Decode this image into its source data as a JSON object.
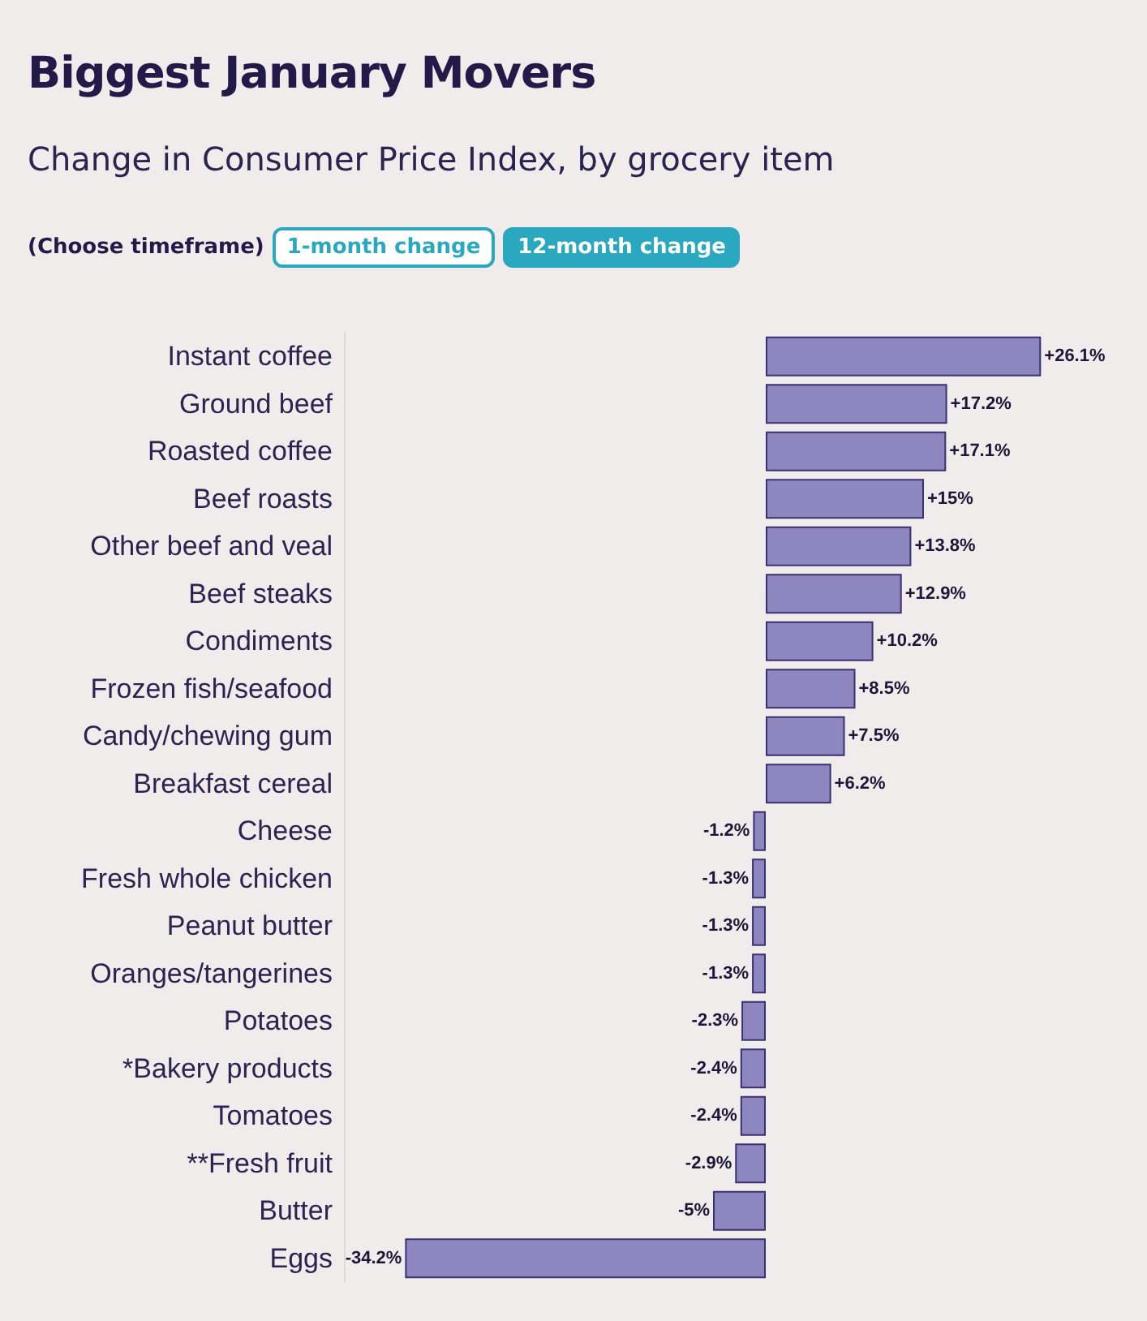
{
  "chart_data": {
    "type": "bar",
    "orientation": "horizontal",
    "title": "Biggest January Movers",
    "subtitle": "Change in Consumer Price Index, by grocery item",
    "annotations": [
      "(Choose timeframe)",
      "1-month change",
      "12-month change"
    ],
    "categories": [
      "Instant coffee",
      "Ground beef",
      "Roasted coffee",
      "Beef roasts",
      "Other beef and veal",
      "Beef steaks",
      "Condiments",
      "Frozen fish/seafood",
      "Candy/chewing gum",
      "Breakfast cereal",
      "Cheese",
      "Fresh whole chicken",
      "Peanut butter",
      "Oranges/tangerines",
      "Potatoes",
      "*Bakery products",
      "Tomatoes",
      "**Fresh fruit",
      "Butter",
      "Eggs"
    ],
    "values": [
      26.1,
      17.2,
      17.1,
      15,
      13.8,
      12.9,
      10.2,
      8.5,
      7.5,
      6.2,
      -1.2,
      -1.3,
      -1.3,
      -1.3,
      -2.3,
      -2.4,
      -2.4,
      -2.9,
      -5,
      -34.2
    ],
    "value_labels": [
      "+26.1%",
      "+17.2%",
      "+17.1%",
      "+15%",
      "+13.8%",
      "+12.9%",
      "+10.2%",
      "+8.5%",
      "+7.5%",
      "+6.2%",
      "-1.2%",
      "-1.3%",
      "-1.3%",
      "-1.3%",
      "-2.3%",
      "-2.4%",
      "-2.4%",
      "-2.9%",
      "-5%",
      "-34.2%"
    ],
    "color": "#8e86bf",
    "tick_labels": "y"
  }
}
